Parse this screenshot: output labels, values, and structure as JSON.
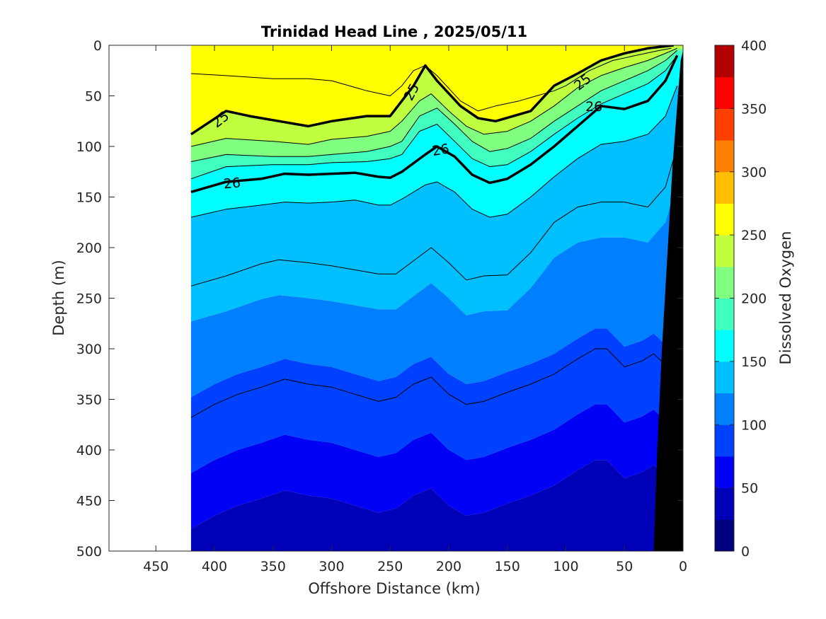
{
  "chart_data": {
    "type": "heatmap",
    "title": "Trinidad Head Line , 2025/05/11",
    "xlabel": "Offshore Distance (km)",
    "ylabel": "Depth (m)",
    "xlim": [
      490,
      0
    ],
    "ylim": [
      0,
      500
    ],
    "x_reversed": true,
    "y_reversed": true,
    "x_ticks": [
      450,
      400,
      350,
      300,
      250,
      200,
      150,
      100,
      50,
      0
    ],
    "y_ticks": [
      0,
      50,
      100,
      150,
      200,
      250,
      300,
      350,
      400,
      450,
      500
    ],
    "data_extent_km": [
      420,
      0
    ],
    "colorbar": {
      "label": "Dissolved Oxygen",
      "range": [
        0,
        400
      ],
      "ticks": [
        0,
        50,
        100,
        150,
        200,
        250,
        300,
        350,
        400
      ],
      "levels": [
        0,
        25,
        50,
        75,
        100,
        125,
        150,
        175,
        200,
        225,
        250,
        275,
        300,
        325,
        350,
        375,
        400
      ],
      "colors": [
        "#00007f",
        "#0000b8",
        "#0000f5",
        "#0040ff",
        "#0080ff",
        "#00bfff",
        "#00ffff",
        "#40ffbf",
        "#80ff80",
        "#bfff40",
        "#ffff00",
        "#ffbf00",
        "#ff8000",
        "#ff4000",
        "#ff0000",
        "#b20000"
      ]
    },
    "isolines_depth_m": [
      {
        "x": [
          420,
          390,
          350,
          320,
          300,
          270,
          250,
          240,
          230,
          220,
          210,
          190,
          175,
          160,
          140,
          110,
          100,
          80,
          60,
          40,
          20,
          10
        ],
        "y": [
          28,
          30,
          33,
          33,
          35,
          45,
          50,
          40,
          25,
          20,
          30,
          55,
          65,
          60,
          55,
          45,
          40,
          25,
          15,
          10,
          5,
          3
        ]
      },
      {
        "x": [
          420,
          390,
          370,
          350,
          320,
          300,
          270,
          250,
          230,
          220,
          210,
          190,
          175,
          160,
          130,
          110,
          90,
          70,
          50,
          30,
          15,
          8
        ],
        "y": [
          88,
          65,
          70,
          74,
          80,
          75,
          70,
          70,
          40,
          20,
          35,
          60,
          72,
          75,
          65,
          40,
          28,
          15,
          8,
          3,
          1,
          0
        ]
      },
      {
        "x": [
          420,
          390,
          350,
          320,
          300,
          270,
          250,
          240,
          225,
          215,
          200,
          185,
          170,
          150,
          130,
          110,
          90,
          70,
          50,
          30,
          15,
          5
        ],
        "y": [
          100,
          92,
          95,
          98,
          93,
          90,
          85,
          75,
          55,
          48,
          65,
          80,
          88,
          85,
          75,
          60,
          42,
          30,
          22,
          15,
          8,
          3
        ]
      },
      {
        "x": [
          420,
          390,
          350,
          320,
          300,
          270,
          250,
          240,
          225,
          210,
          195,
          180,
          165,
          150,
          130,
          110,
          90,
          70,
          50,
          30,
          15,
          5
        ],
        "y": [
          115,
          108,
          110,
          110,
          108,
          105,
          100,
          95,
          70,
          62,
          78,
          95,
          105,
          102,
          92,
          75,
          60,
          45,
          35,
          25,
          15,
          5
        ]
      },
      {
        "x": [
          420,
          390,
          350,
          320,
          300,
          270,
          250,
          240,
          225,
          210,
          195,
          180,
          165,
          150,
          130,
          110,
          90,
          70,
          50,
          30,
          15,
          5
        ],
        "y": [
          132,
          120,
          118,
          118,
          116,
          115,
          112,
          108,
          85,
          78,
          95,
          112,
          120,
          118,
          105,
          88,
          72,
          58,
          48,
          38,
          25,
          10
        ]
      },
      {
        "x": [
          420,
          390,
          360,
          340,
          320,
          300,
          280,
          260,
          250,
          240,
          220,
          210,
          195,
          180,
          165,
          150,
          130,
          110,
          90,
          70,
          50,
          30,
          15,
          5
        ],
        "y": [
          145,
          135,
          132,
          127,
          128,
          127,
          126,
          130,
          131,
          125,
          108,
          100,
          110,
          128,
          136,
          132,
          118,
          100,
          80,
          60,
          63,
          55,
          35,
          10
        ]
      },
      {
        "x": [
          420,
          390,
          360,
          340,
          320,
          300,
          280,
          260,
          250,
          240,
          220,
          210,
          195,
          180,
          165,
          150,
          130,
          110,
          90,
          70,
          50,
          30,
          15,
          5
        ],
        "y": [
          170,
          162,
          158,
          155,
          156,
          155,
          153,
          158,
          158,
          152,
          138,
          135,
          145,
          162,
          170,
          167,
          150,
          130,
          112,
          98,
          95,
          88,
          70,
          40
        ]
      },
      {
        "x": [
          420,
          390,
          360,
          345,
          320,
          300,
          280,
          260,
          245,
          230,
          215,
          200,
          185,
          170,
          150,
          130,
          110,
          90,
          70,
          50,
          30,
          15,
          5
        ],
        "y": [
          238,
          228,
          216,
          212,
          215,
          218,
          222,
          226,
          226,
          213,
          200,
          215,
          232,
          228,
          227,
          205,
          175,
          160,
          155,
          155,
          160,
          140,
          100
        ]
      },
      {
        "x": [
          420,
          400,
          380,
          360,
          340,
          320,
          300,
          280,
          260,
          245,
          230,
          215,
          200,
          185,
          170,
          150,
          130,
          110,
          90,
          75,
          65,
          50,
          35,
          25,
          15
        ],
        "y": [
          368,
          355,
          345,
          338,
          330,
          335,
          338,
          345,
          352,
          348,
          335,
          328,
          345,
          355,
          352,
          343,
          335,
          325,
          310,
          300,
          300,
          318,
          312,
          305,
          316
        ]
      }
    ],
    "bold_isolines": [
      1,
      5
    ],
    "contour_labels": [
      {
        "text": "25",
        "x": 395,
        "y": 73,
        "angle": -38
      },
      {
        "text": "25",
        "x": 232,
        "y": 46,
        "angle": -62
      },
      {
        "text": "25",
        "x": 86,
        "y": 36,
        "angle": -38
      },
      {
        "text": "26",
        "x": 385,
        "y": 136,
        "angle": -5
      },
      {
        "text": "26",
        "x": 207,
        "y": 103,
        "angle": -10
      },
      {
        "text": "26",
        "x": 76,
        "y": 60,
        "angle": 0
      }
    ],
    "bottom_topography": {
      "x": [
        25,
        22,
        18,
        13,
        9,
        5,
        2,
        0
      ],
      "y": [
        500,
        400,
        300,
        200,
        120,
        60,
        15,
        5
      ]
    }
  }
}
